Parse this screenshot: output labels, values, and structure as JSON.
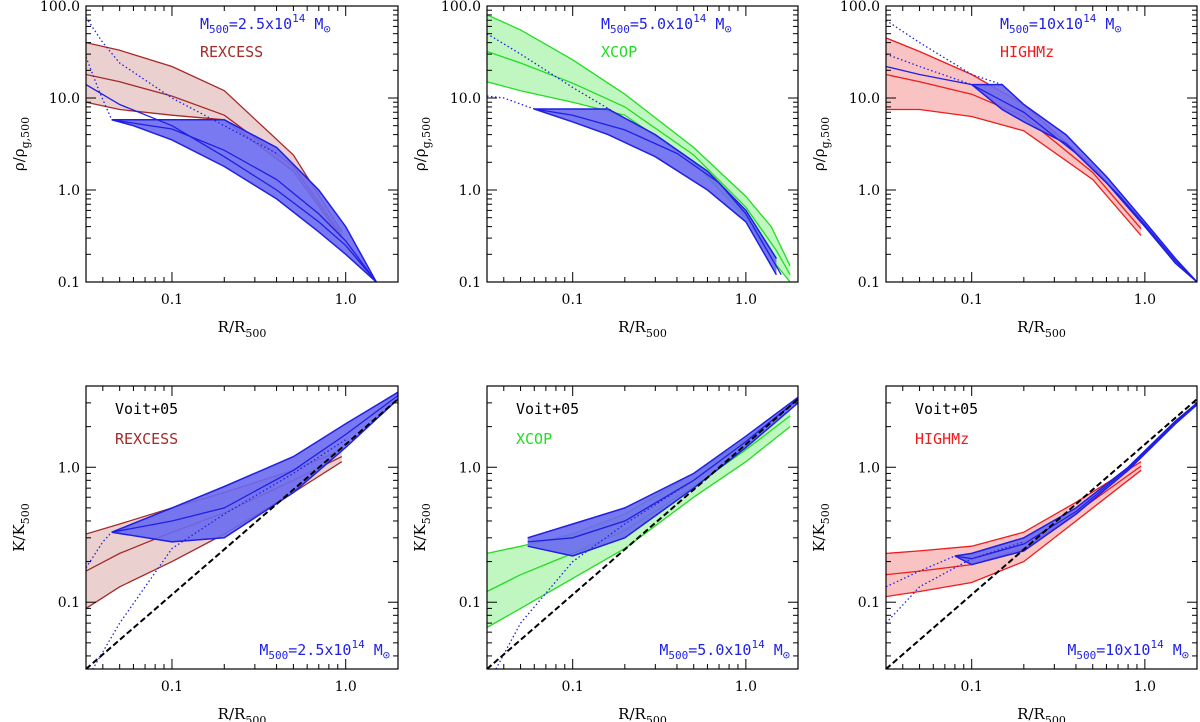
{
  "colors": {
    "blue": "#1f1fe6",
    "blue_fill": "#6a6af0",
    "rexcess": "#a52a2a",
    "rexcess_fill": "#e8c8c8",
    "xcop": "#22dd22",
    "xcop_fill": "#b5f5b5",
    "highmz": "#ee1c1c",
    "highmz_fill": "#f8b8b8",
    "voit": "#000000"
  },
  "labels": {
    "xlabel": "R/R",
    "xlabel_sub": "500",
    "ylabel_density": "ρ/ρ",
    "ylabel_density_sub": "g,500",
    "ylabel_entropy": "K/K",
    "ylabel_entropy_sub": "500",
    "voit": "Voit+05",
    "mass_prefix": "M",
    "mass_sub": "500",
    "sun": "⊙",
    "exponent": "14"
  },
  "chart_data": [
    {
      "id": "density-rexcess",
      "type": "line",
      "quantity": "density",
      "mass_value": "=2.5x10",
      "sample": "REXCESS",
      "sample_color_key": "rexcess",
      "xscale": "log",
      "yscale": "log",
      "xlim": [
        0.032,
        2.0
      ],
      "ylim": [
        0.1,
        100.0
      ],
      "xticks": [
        0.1,
        1.0
      ],
      "xtick_labels": [
        "0.1",
        "1.0"
      ],
      "yticks": [
        0.1,
        1.0,
        10.0,
        100.0
      ],
      "ytick_labels": [
        "0.1",
        "1.0",
        "10.0",
        "100.0"
      ],
      "sample_band": {
        "x": [
          0.032,
          0.05,
          0.1,
          0.2,
          0.5,
          0.95
        ],
        "upper": [
          40,
          33,
          22,
          12,
          2.4,
          0.35
        ],
        "lower": [
          9,
          7.5,
          6.5,
          5.8,
          1.6,
          0.3
        ]
      },
      "sample_median": {
        "x": [
          0.032,
          0.05,
          0.1,
          0.2,
          0.5,
          0.95
        ],
        "y": [
          18,
          15,
          10.5,
          6.5,
          1.8,
          0.32
        ]
      },
      "model_band": {
        "x": [
          0.045,
          0.06,
          0.1,
          0.2,
          0.4,
          0.7,
          1.0,
          1.5
        ],
        "upper": [
          5.8,
          5.8,
          5.8,
          5.8,
          2.9,
          1.0,
          0.4,
          0.1
        ],
        "lower": [
          5.8,
          5.0,
          3.5,
          1.8,
          0.8,
          0.35,
          0.2,
          0.1
        ]
      },
      "model_curves": [
        {
          "x": [
            0.045,
            0.1,
            0.2,
            0.4,
            0.7,
            1.0,
            1.5
          ],
          "y": [
            5.8,
            4.6,
            2.7,
            1.3,
            0.55,
            0.28,
            0.1
          ]
        },
        {
          "x": [
            0.032,
            0.05,
            0.1,
            0.2,
            0.4,
            0.7,
            1.0,
            1.5
          ],
          "y": [
            14,
            8.5,
            5.0,
            2.3,
            1.0,
            0.45,
            0.25,
            0.1
          ]
        }
      ],
      "model_dotted": [
        {
          "x": [
            0.032,
            0.04,
            0.05,
            0.1,
            0.2,
            0.4
          ],
          "y": [
            75,
            40,
            24,
            10,
            5.0,
            2.5
          ]
        },
        {
          "x": [
            0.032,
            0.038,
            0.045
          ],
          "y": [
            28,
            12,
            5.8
          ]
        }
      ]
    },
    {
      "id": "density-xcop",
      "type": "line",
      "quantity": "density",
      "mass_value": "=5.0x10",
      "sample": "XCOP",
      "sample_color_key": "xcop",
      "xscale": "log",
      "yscale": "log",
      "xlim": [
        0.032,
        2.0
      ],
      "ylim": [
        0.1,
        100.0
      ],
      "xticks": [
        0.1,
        1.0
      ],
      "xtick_labels": [
        "0.1",
        "1.0"
      ],
      "yticks": [
        0.1,
        1.0,
        10.0,
        100.0
      ],
      "ytick_labels": [
        "0.1",
        "1.0",
        "10.0",
        "100.0"
      ],
      "sample_band": {
        "x": [
          0.032,
          0.05,
          0.1,
          0.2,
          0.5,
          1.0,
          1.4,
          1.8
        ],
        "upper": [
          80,
          55,
          26,
          11,
          2.9,
          0.85,
          0.4,
          0.15
        ],
        "lower": [
          15,
          12,
          9.0,
          6.5,
          2.0,
          0.5,
          0.18,
          0.1
        ]
      },
      "sample_median": {
        "x": [
          0.032,
          0.05,
          0.1,
          0.2,
          0.5,
          1.0,
          1.5,
          1.8
        ],
        "y": [
          32,
          24,
          14.5,
          8.0,
          2.4,
          0.65,
          0.22,
          0.12
        ]
      },
      "model_band": {
        "x": [
          0.06,
          0.1,
          0.16,
          0.3,
          0.6,
          1.0,
          1.5
        ],
        "upper": [
          7.6,
          7.6,
          7.6,
          4.0,
          1.6,
          0.6,
          0.18
        ],
        "lower": [
          7.6,
          5.5,
          4.0,
          2.3,
          1.0,
          0.45,
          0.12
        ]
      },
      "model_curves": [
        {
          "x": [
            0.06,
            0.1,
            0.2,
            0.4,
            0.7,
            1.0,
            1.6
          ],
          "y": [
            7.6,
            6.5,
            4.5,
            2.5,
            1.2,
            0.55,
            0.12
          ]
        }
      ],
      "model_dotted": [
        {
          "x": [
            0.032,
            0.04,
            0.06
          ],
          "y": [
            10.5,
            10,
            7.6
          ]
        },
        {
          "x": [
            0.032,
            0.05,
            0.1,
            0.2
          ],
          "y": [
            50,
            30,
            13,
            6.0
          ]
        }
      ]
    },
    {
      "id": "density-highmz",
      "type": "line",
      "quantity": "density",
      "mass_value": "=10x10",
      "sample": "HIGHMz",
      "sample_color_key": "highmz",
      "xscale": "log",
      "yscale": "log",
      "xlim": [
        0.032,
        2.0
      ],
      "ylim": [
        0.1,
        100.0
      ],
      "xticks": [
        0.1,
        1.0
      ],
      "xtick_labels": [
        "0.1",
        "1.0"
      ],
      "yticks": [
        0.1,
        1.0,
        10.0,
        100.0
      ],
      "ytick_labels": [
        "0.1",
        "1.0",
        "10.0",
        "100.0"
      ],
      "sample_band": {
        "x": [
          0.032,
          0.05,
          0.1,
          0.2,
          0.5,
          0.95
        ],
        "upper": [
          45,
          32,
          18,
          8.5,
          1.8,
          0.45
        ],
        "lower": [
          7.5,
          7.5,
          6.3,
          4.4,
          1.3,
          0.32
        ]
      },
      "sample_median": {
        "x": [
          0.032,
          0.05,
          0.1,
          0.2,
          0.5,
          0.95
        ],
        "y": [
          18,
          15,
          11,
          6.3,
          1.55,
          0.38
        ]
      },
      "model_band": {
        "x": [
          0.1,
          0.15,
          0.2,
          0.35,
          0.6,
          1.0,
          1.5,
          2.0
        ],
        "upper": [
          14,
          14,
          8.5,
          4.0,
          1.4,
          0.45,
          0.18,
          0.1
        ],
        "lower": [
          14,
          7.5,
          5.5,
          3.2,
          1.2,
          0.4,
          0.16,
          0.1
        ]
      },
      "model_curves": [
        {
          "x": [
            0.032,
            0.05,
            0.1,
            0.2,
            0.4,
            0.7,
            1.0,
            1.5,
            2.0
          ],
          "y": [
            22,
            18,
            14,
            7.0,
            2.5,
            0.9,
            0.42,
            0.17,
            0.1
          ]
        }
      ],
      "model_dotted": [
        {
          "x": [
            0.032,
            0.05,
            0.1,
            0.15
          ],
          "y": [
            70,
            40,
            18,
            14
          ]
        },
        {
          "x": [
            0.032,
            0.05,
            0.1
          ],
          "y": [
            30,
            22,
            14
          ]
        }
      ]
    },
    {
      "id": "entropy-rexcess",
      "type": "line",
      "quantity": "entropy",
      "mass_value": "=2.5x10",
      "sample": "REXCESS",
      "sample_color_key": "rexcess",
      "xscale": "log",
      "yscale": "log",
      "xlim": [
        0.032,
        2.0
      ],
      "ylim": [
        0.032,
        4.0
      ],
      "xticks": [
        0.1,
        1.0
      ],
      "xtick_labels": [
        "0.1",
        "1.0"
      ],
      "yticks": [
        0.1,
        1.0
      ],
      "ytick_labels": [
        "0.1",
        "1.0"
      ],
      "sample_band": {
        "x": [
          0.032,
          0.05,
          0.1,
          0.2,
          0.5,
          0.95
        ],
        "upper": [
          0.32,
          0.38,
          0.5,
          0.65,
          0.95,
          1.35
        ],
        "lower": [
          0.09,
          0.13,
          0.2,
          0.32,
          0.65,
          1.1
        ]
      },
      "sample_median": {
        "x": [
          0.032,
          0.05,
          0.1,
          0.2,
          0.5,
          0.95
        ],
        "y": [
          0.17,
          0.23,
          0.33,
          0.46,
          0.8,
          1.2
        ]
      },
      "model_band": {
        "x": [
          0.045,
          0.1,
          0.2,
          0.5,
          1.0,
          2.0
        ],
        "upper": [
          0.33,
          0.5,
          0.72,
          1.2,
          2.1,
          3.6
        ],
        "lower": [
          0.33,
          0.28,
          0.3,
          0.65,
          1.4,
          3.2
        ]
      },
      "model_curves": [
        {
          "x": [
            0.045,
            0.1,
            0.2,
            0.5,
            1.0,
            2.0
          ],
          "y": [
            0.33,
            0.4,
            0.5,
            0.95,
            1.75,
            3.4
          ]
        }
      ],
      "model_dotted": [
        {
          "x": [
            0.034,
            0.05,
            0.1,
            0.2,
            0.5,
            1.0
          ],
          "y": [
            0.03,
            0.07,
            0.25,
            0.45,
            0.9,
            1.6
          ]
        },
        {
          "x": [
            0.032,
            0.04,
            0.045
          ],
          "y": [
            0.18,
            0.28,
            0.33
          ]
        }
      ],
      "reference_line": {
        "label": "Voit+05",
        "x": [
          0.032,
          2.0
        ],
        "y": [
          0.032,
          3.2
        ]
      }
    },
    {
      "id": "entropy-xcop",
      "type": "line",
      "quantity": "entropy",
      "mass_value": "=5.0x10",
      "sample": "XCOP",
      "sample_color_key": "xcop",
      "xscale": "log",
      "yscale": "log",
      "xlim": [
        0.032,
        2.0
      ],
      "ylim": [
        0.032,
        4.0
      ],
      "xticks": [
        0.1,
        1.0
      ],
      "xtick_labels": [
        "0.1",
        "1.0"
      ],
      "yticks": [
        0.1,
        1.0
      ],
      "ytick_labels": [
        "0.1",
        "1.0"
      ],
      "sample_band": {
        "x": [
          0.032,
          0.05,
          0.1,
          0.2,
          0.5,
          1.0,
          1.8
        ],
        "upper": [
          0.23,
          0.26,
          0.32,
          0.45,
          0.9,
          1.6,
          2.8
        ],
        "lower": [
          0.065,
          0.09,
          0.15,
          0.25,
          0.6,
          1.1,
          2.0
        ]
      },
      "sample_median": {
        "x": [
          0.032,
          0.05,
          0.1,
          0.2,
          0.5,
          1.0,
          1.8
        ],
        "y": [
          0.12,
          0.16,
          0.23,
          0.34,
          0.72,
          1.35,
          2.4
        ]
      },
      "model_band": {
        "x": [
          0.055,
          0.1,
          0.2,
          0.5,
          1.0,
          2.0
        ],
        "upper": [
          0.3,
          0.38,
          0.5,
          0.9,
          1.7,
          3.3
        ],
        "lower": [
          0.26,
          0.22,
          0.3,
          0.7,
          1.4,
          3.0
        ]
      },
      "model_curves": [
        {
          "x": [
            0.055,
            0.1,
            0.2,
            0.5,
            1.0,
            2.0
          ],
          "y": [
            0.28,
            0.3,
            0.4,
            0.8,
            1.55,
            3.2
          ]
        }
      ],
      "model_dotted": [
        {
          "x": [
            0.036,
            0.05,
            0.1,
            0.2,
            0.5
          ],
          "y": [
            0.032,
            0.07,
            0.2,
            0.38,
            0.8
          ]
        }
      ],
      "reference_line": {
        "label": "Voit+05",
        "x": [
          0.032,
          2.0
        ],
        "y": [
          0.032,
          3.2
        ]
      }
    },
    {
      "id": "entropy-highmz",
      "type": "line",
      "quantity": "entropy",
      "mass_value": "=10x10",
      "sample": "HIGHMz",
      "sample_color_key": "highmz",
      "xscale": "log",
      "yscale": "log",
      "xlim": [
        0.032,
        2.0
      ],
      "ylim": [
        0.032,
        4.0
      ],
      "xticks": [
        0.1,
        1.0
      ],
      "xtick_labels": [
        "0.1",
        "1.0"
      ],
      "yticks": [
        0.1,
        1.0
      ],
      "ytick_labels": [
        "0.1",
        "1.0"
      ],
      "sample_band": {
        "x": [
          0.032,
          0.05,
          0.1,
          0.2,
          0.4,
          0.95
        ],
        "upper": [
          0.23,
          0.24,
          0.26,
          0.33,
          0.55,
          1.1
        ],
        "lower": [
          0.11,
          0.12,
          0.14,
          0.2,
          0.4,
          0.95
        ]
      },
      "sample_median": {
        "x": [
          0.032,
          0.05,
          0.1,
          0.2,
          0.4,
          0.95
        ],
        "y": [
          0.16,
          0.17,
          0.19,
          0.25,
          0.46,
          1.02
        ]
      },
      "model_band": {
        "x": [
          0.08,
          0.1,
          0.2,
          0.4,
          0.8,
          1.5,
          2.0
        ],
        "upper": [
          0.22,
          0.23,
          0.3,
          0.5,
          1.0,
          2.2,
          3.0
        ],
        "lower": [
          0.22,
          0.19,
          0.24,
          0.45,
          0.95,
          2.1,
          2.9
        ]
      },
      "model_curves": [
        {
          "x": [
            0.08,
            0.1,
            0.2,
            0.4,
            0.8,
            1.5,
            2.0
          ],
          "y": [
            0.22,
            0.21,
            0.27,
            0.47,
            0.98,
            2.15,
            2.95
          ]
        }
      ],
      "model_dotted": [
        {
          "x": [
            0.032,
            0.05,
            0.1,
            0.2
          ],
          "y": [
            0.07,
            0.13,
            0.21,
            0.28
          ]
        },
        {
          "x": [
            0.032,
            0.05,
            0.08
          ],
          "y": [
            0.13,
            0.17,
            0.22
          ]
        }
      ],
      "reference_line": {
        "label": "Voit+05",
        "x": [
          0.032,
          2.0
        ],
        "y": [
          0.032,
          3.2
        ]
      }
    }
  ]
}
